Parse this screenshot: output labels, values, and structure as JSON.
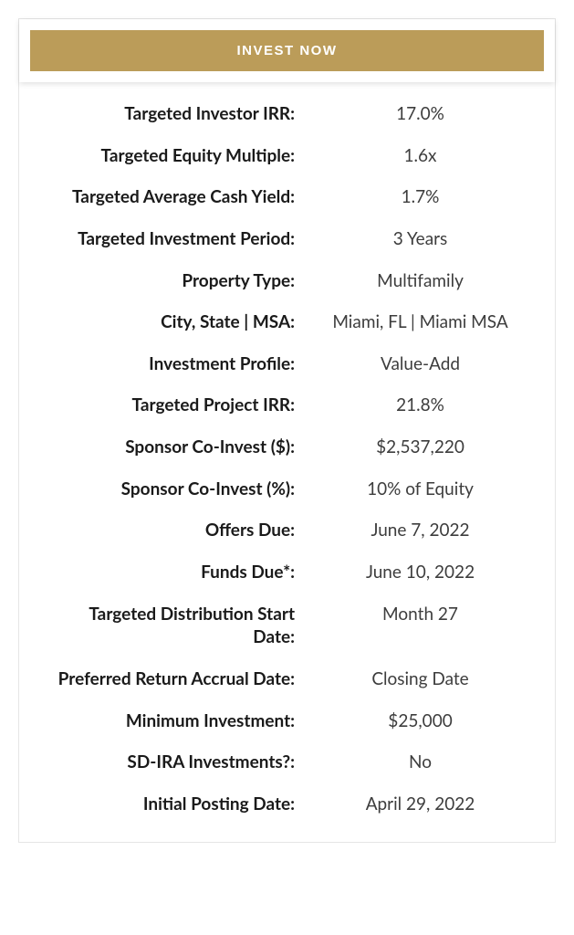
{
  "cta": {
    "label": "INVEST NOW",
    "bg_color": "#bb9c59",
    "text_color": "#ffffff"
  },
  "details": {
    "rows": [
      {
        "label": "Targeted Investor IRR:",
        "value": "17.0%"
      },
      {
        "label": "Targeted Equity Multiple:",
        "value": "1.6x"
      },
      {
        "label": "Targeted Average Cash Yield:",
        "value": "1.7%"
      },
      {
        "label": "Targeted Investment Period:",
        "value": "3 Years"
      },
      {
        "label": "Property Type:",
        "value": "Multifamily"
      },
      {
        "label": "City, State | MSA:",
        "value": "Miami, FL | Miami MSA"
      },
      {
        "label": "Investment Profile:",
        "value": "Value-Add"
      },
      {
        "label": "Targeted Project IRR:",
        "value": "21.8%"
      },
      {
        "label": "Sponsor Co-Invest ($):",
        "value": "$2,537,220"
      },
      {
        "label": "Sponsor Co-Invest (%):",
        "value": "10% of Equity"
      },
      {
        "label": "Offers Due:",
        "value": "June 7, 2022"
      },
      {
        "label": "Funds Due*:",
        "value": "June 10, 2022"
      },
      {
        "label": "Targeted Distribution Start Date:",
        "value": "Month 27"
      },
      {
        "label": "Preferred Return Accrual Date:",
        "value": "Closing Date"
      },
      {
        "label": "Minimum Investment:",
        "value": "$25,000"
      },
      {
        "label": "SD-IRA Investments?:",
        "value": "No"
      },
      {
        "label": "Initial Posting Date:",
        "value": "April 29, 2022"
      }
    ]
  },
  "colors": {
    "border": "#e5e5e5",
    "label_text": "#1a1a1a",
    "value_text": "#3d3d3d",
    "background": "#ffffff"
  }
}
